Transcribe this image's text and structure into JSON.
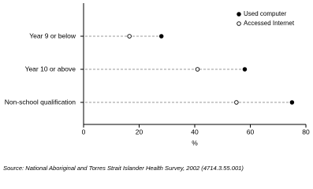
{
  "chart_data": {
    "type": "dot",
    "categories": [
      "Year 9 or below",
      "Year 10 or above",
      "Non-school qualification"
    ],
    "series": [
      {
        "name": "Used computer",
        "color": "#000000",
        "marker": "filled",
        "values": [
          28,
          58,
          75
        ]
      },
      {
        "name": "Accessed Internet",
        "color": "#000000",
        "marker": "open",
        "values": [
          16.5,
          41,
          55
        ]
      }
    ],
    "xlabel": "%",
    "xlim": [
      0,
      80
    ],
    "xticks": [
      0,
      20,
      40,
      60,
      80
    ],
    "legend": "top-right",
    "source": "Source: National Aboriginal and Torres Strait Islander Health Survey, 2002 (4714.3.55.001)"
  }
}
